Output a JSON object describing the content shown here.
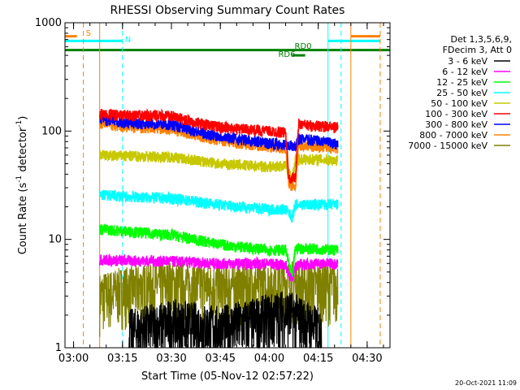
{
  "chart_data": {
    "type": "line",
    "title": "RHESSI Observing Summary Count Rates",
    "xlabel": "Start Time (05-Nov-12 02:57:22)",
    "ylabel": "Count Rate (s⁻¹ detector⁻¹)",
    "ylabel_main": "Count Rate (s",
    "ylabel_sup1": "-1",
    "ylabel_mid": " detector",
    "ylabel_sup2": "-1",
    "ylabel_end": ")",
    "yscale": "log",
    "ylim": [
      1,
      1000
    ],
    "xlim": [
      "02:57:22",
      "04:37:00"
    ],
    "x_ticks": [
      "03:00",
      "03:15",
      "03:30",
      "03:45",
      "04:00",
      "04:15",
      "04:30"
    ],
    "y_ticks": [
      "1",
      "10",
      "100",
      "1000"
    ],
    "legend_header": [
      "Det 1,3,5,6,9,",
      "FDecim 3, Att 0"
    ],
    "legend_placement": "right",
    "date_stamp": "20-Oct-2021 11:09",
    "series": [
      {
        "name": "3 - 6 keV",
        "color": "#000000",
        "points": [
          [
            "03:17",
            1.3
          ],
          [
            "03:30",
            1.6
          ],
          [
            "03:45",
            1.4
          ],
          [
            "04:00",
            1.8
          ],
          [
            "04:05",
            2.0
          ],
          [
            "04:10",
            1.7
          ],
          [
            "04:16",
            1.3
          ]
        ]
      },
      {
        "name": "6 - 12 keV",
        "color": "#ff00ff",
        "points": [
          [
            "03:08",
            6.5
          ],
          [
            "03:15",
            6.4
          ],
          [
            "03:30",
            6.3
          ],
          [
            "03:45",
            6.0
          ],
          [
            "04:00",
            6.0
          ],
          [
            "04:05",
            5.8
          ],
          [
            "04:07",
            4.2
          ],
          [
            "04:08",
            5.8
          ],
          [
            "04:15",
            6.0
          ],
          [
            "04:21",
            6.0
          ]
        ]
      },
      {
        "name": "12 - 25 keV",
        "color": "#00ff00",
        "points": [
          [
            "03:08",
            12.5
          ],
          [
            "03:15",
            12.0
          ],
          [
            "03:30",
            11.0
          ],
          [
            "03:45",
            9.0
          ],
          [
            "04:00",
            8.0
          ],
          [
            "04:05",
            8.0
          ],
          [
            "04:07",
            4.5
          ],
          [
            "04:08",
            8.3
          ],
          [
            "04:15",
            8.2
          ],
          [
            "04:21",
            8.0
          ]
        ]
      },
      {
        "name": "25 - 50 keV",
        "color": "#00ffff",
        "points": [
          [
            "03:08",
            26
          ],
          [
            "03:15",
            25
          ],
          [
            "03:30",
            24
          ],
          [
            "03:45",
            21
          ],
          [
            "04:00",
            19
          ],
          [
            "04:05",
            19
          ],
          [
            "04:07",
            16
          ],
          [
            "04:08",
            21
          ],
          [
            "04:15",
            21
          ],
          [
            "04:21",
            21
          ]
        ]
      },
      {
        "name": "50 - 100 keV",
        "color": "#c8c800",
        "points": [
          [
            "03:08",
            60
          ],
          [
            "03:15",
            59
          ],
          [
            "03:30",
            58
          ],
          [
            "03:45",
            50
          ],
          [
            "04:00",
            47
          ],
          [
            "04:05",
            48
          ],
          [
            "04:07",
            35
          ],
          [
            "04:08",
            55
          ],
          [
            "04:15",
            55
          ],
          [
            "04:21",
            54
          ]
        ]
      },
      {
        "name": "100 - 300 keV",
        "color": "#ff0000",
        "points": [
          [
            "03:08",
            145
          ],
          [
            "03:15",
            140
          ],
          [
            "03:30",
            138
          ],
          [
            "03:40",
            115
          ],
          [
            "03:50",
            105
          ],
          [
            "04:00",
            100
          ],
          [
            "04:05",
            97
          ],
          [
            "04:06",
            36
          ],
          [
            "04:08",
            38
          ],
          [
            "04:09",
            115
          ],
          [
            "04:15",
            112
          ],
          [
            "04:21",
            108
          ]
        ]
      },
      {
        "name": "300 - 800 keV",
        "color": "#0000ff",
        "points": [
          [
            "03:08",
            130
          ],
          [
            "03:15",
            120
          ],
          [
            "03:30",
            115
          ],
          [
            "03:40",
            95
          ],
          [
            "03:50",
            85
          ],
          [
            "04:00",
            78
          ],
          [
            "04:05",
            75
          ],
          [
            "04:08",
            72
          ],
          [
            "04:09",
            85
          ],
          [
            "04:15",
            82
          ],
          [
            "04:21",
            75
          ]
        ]
      },
      {
        "name": "800 - 7000 keV",
        "color": "#ff8000",
        "points": [
          [
            "03:08",
            120
          ],
          [
            "03:15",
            110
          ],
          [
            "03:30",
            105
          ],
          [
            "03:40",
            88
          ],
          [
            "03:50",
            78
          ],
          [
            "04:00",
            72
          ],
          [
            "04:05",
            70
          ],
          [
            "04:06",
            32
          ],
          [
            "04:08",
            30
          ],
          [
            "04:09",
            75
          ],
          [
            "04:15",
            72
          ],
          [
            "04:21",
            70
          ]
        ]
      },
      {
        "name": "7000 - 15000 keV",
        "color": "#808000",
        "points": [
          [
            "03:08",
            2.8
          ],
          [
            "03:15",
            3.2
          ],
          [
            "03:30",
            3.6
          ],
          [
            "03:45",
            3.4
          ],
          [
            "04:00",
            3.6
          ],
          [
            "04:05",
            3.8
          ],
          [
            "04:10",
            3.5
          ],
          [
            "04:15",
            3.5
          ],
          [
            "04:21",
            3.5
          ]
        ]
      }
    ],
    "annotations": [
      {
        "label": "S",
        "color": "#ff8000",
        "x": "03:03"
      },
      {
        "label": "N",
        "color": "#00ffff",
        "x": "03:15"
      },
      {
        "label": "RD0",
        "color": "#008000",
        "x": "04:07"
      },
      {
        "label": "RD6",
        "color": "#008000",
        "x": "04:02"
      }
    ],
    "flag_lines": [
      {
        "color": "#ff8000",
        "segments": [
          [
            "02:57:22",
            "03:01"
          ],
          [
            "04:25",
            "04:34"
          ]
        ],
        "y": 750
      },
      {
        "color": "#00ffff",
        "segments": [
          [
            "02:57:22",
            "03:15"
          ],
          [
            "04:18",
            "04:34"
          ]
        ],
        "y": 680
      },
      {
        "color": "#008000",
        "segments": [
          [
            "02:57:22",
            "04:37:00"
          ]
        ],
        "y": 560
      },
      {
        "color": "#008000",
        "segments": [
          [
            "04:07",
            "04:11"
          ]
        ],
        "y": 500
      }
    ],
    "vertical_markers": [
      {
        "color": "#00ffff",
        "x": "02:57:22",
        "style": "solid"
      },
      {
        "color": "#ff8000",
        "x": "03:03",
        "style": "dashed"
      },
      {
        "color": "#ff8000",
        "x": "03:08",
        "style": "solid"
      },
      {
        "color": "#00ffff",
        "x": "03:15",
        "style": "dashed"
      },
      {
        "color": "#00ffff",
        "x": "04:18",
        "style": "solid"
      },
      {
        "color": "#ff8000",
        "x": "04:25",
        "style": "solid"
      },
      {
        "color": "#00ffff",
        "x": "04:22",
        "style": "dashed"
      },
      {
        "color": "#ff8000",
        "x": "04:34",
        "style": "dashed"
      }
    ]
  }
}
